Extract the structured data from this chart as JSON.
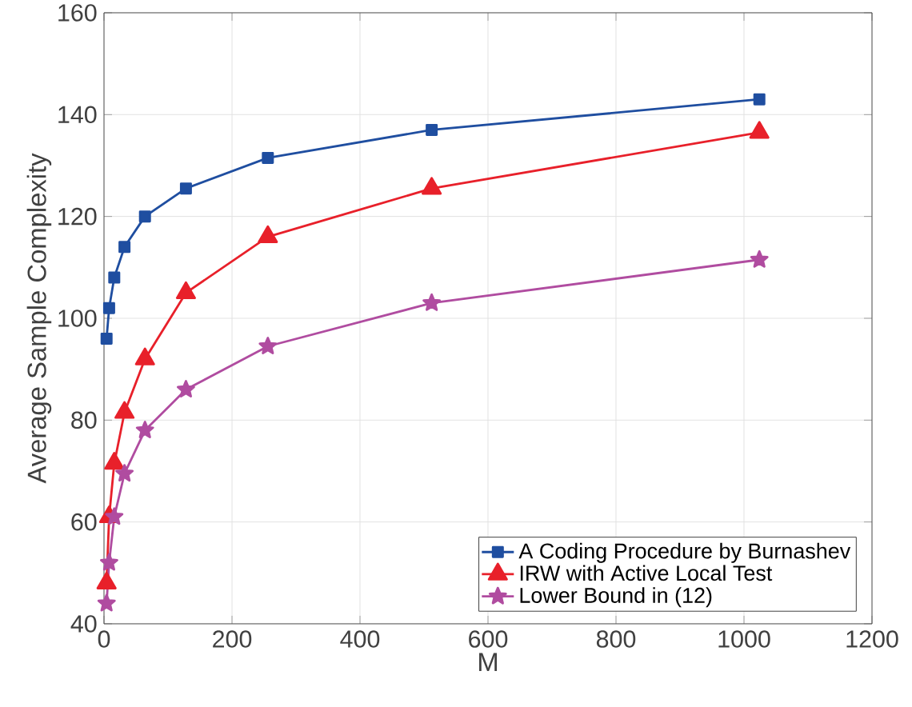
{
  "chart_data": {
    "type": "line",
    "xlabel": "M",
    "ylabel": "Average Sample Complexity",
    "xlim": [
      0,
      1200
    ],
    "ylim": [
      40,
      160
    ],
    "xticks": [
      0,
      200,
      400,
      600,
      800,
      1000,
      1200
    ],
    "yticks": [
      40,
      60,
      80,
      100,
      120,
      140,
      160
    ],
    "grid": true,
    "legend": "bottom right",
    "line_style": "solid",
    "series": [
      {
        "name": "A Coding Procedure by Burnashev",
        "color": "#1f4ea0",
        "marker": "square",
        "x": [
          4,
          8,
          16,
          32,
          64,
          128,
          256,
          512,
          1024
        ],
        "values": [
          96,
          102,
          108,
          114,
          120,
          125.5,
          131.5,
          137,
          143
        ]
      },
      {
        "name": "IRW with Active Local Test",
        "color": "#e8202a",
        "marker": "triangle",
        "x": [
          4,
          8,
          16,
          32,
          64,
          128,
          256,
          512,
          1024
        ],
        "values": [
          48,
          61,
          71.5,
          81.5,
          92,
          105,
          116,
          125.5,
          136.5
        ]
      },
      {
        "name": "Lower Bound in (12)",
        "color": "#b04ca0",
        "marker": "star",
        "x": [
          4,
          8,
          16,
          32,
          64,
          128,
          256,
          512,
          1024
        ],
        "values": [
          44,
          52,
          61,
          69.5,
          78,
          86,
          94.5,
          103,
          111.5
        ]
      }
    ]
  }
}
